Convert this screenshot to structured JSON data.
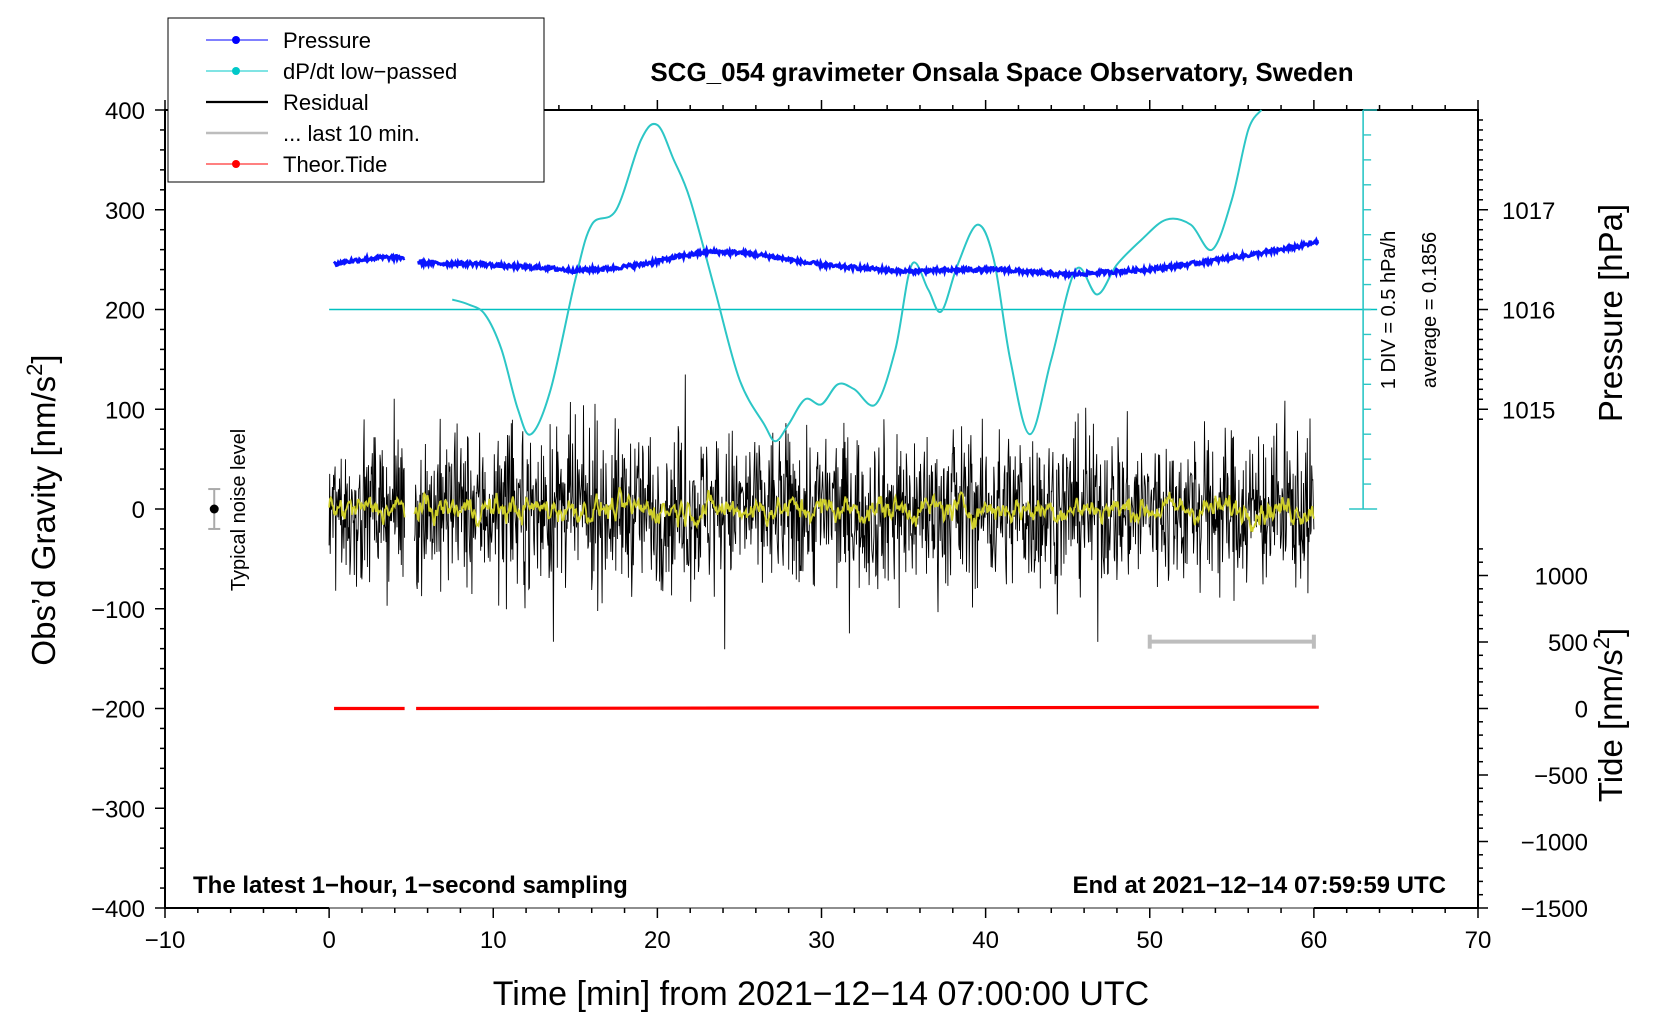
{
  "chart_data": {
    "type": "line",
    "title": "SCG_054 gravimeter Onsala Space Observatory, Sweden",
    "xlabel": "Time [min] from 2021−12−14 07:00:00 UTC",
    "ylabel_left_main": "Obs’d Gravity [nm/s",
    "ylabel_left_sup": "2",
    "ylabel_left_close": "]",
    "ylabel_right_pressure": "Pressure [hPa]",
    "ylabel_right_tide_main": "Tide [nm/s",
    "ylabel_right_tide_sup": "2",
    "ylabel_right_tide_close": "]",
    "xlim": [
      -10,
      70
    ],
    "ylim": [
      -400,
      400
    ],
    "pressure_lim": [
      1013.9,
      1017.95
    ],
    "tide_lim": [
      -1500,
      1500
    ],
    "x_ticks": [
      {
        "v": -10,
        "label": "−10"
      },
      {
        "v": 0,
        "label": "0"
      },
      {
        "v": 10,
        "label": "10"
      },
      {
        "v": 20,
        "label": "20"
      },
      {
        "v": 30,
        "label": "30"
      },
      {
        "v": 40,
        "label": "40"
      },
      {
        "v": 50,
        "label": "50"
      },
      {
        "v": 60,
        "label": "60"
      },
      {
        "v": 70,
        "label": "70"
      }
    ],
    "y_ticks": [
      {
        "v": 400,
        "label": "400"
      },
      {
        "v": 300,
        "label": "300"
      },
      {
        "v": 200,
        "label": "200"
      },
      {
        "v": 100,
        "label": "100"
      },
      {
        "v": 0,
        "label": "0"
      },
      {
        "v": -100,
        "label": "−100"
      },
      {
        "v": -200,
        "label": "−200"
      },
      {
        "v": -300,
        "label": "−300"
      },
      {
        "v": -400,
        "label": "−400"
      }
    ],
    "pressure_ticks": [
      {
        "v": 1017,
        "label": "1017"
      },
      {
        "v": 1016,
        "label": "1016"
      },
      {
        "v": 1015,
        "label": "1015"
      }
    ],
    "tide_ticks": [
      {
        "v": 1000,
        "label": "1000"
      },
      {
        "v": 500,
        "label": "500"
      },
      {
        "v": 0,
        "label": "0"
      },
      {
        "v": -500,
        "label": "−500"
      },
      {
        "v": -1000,
        "label": "−1000"
      },
      {
        "v": -1500,
        "label": "−1500"
      }
    ],
    "legend": [
      {
        "label": "Pressure",
        "color": "#0000ff",
        "marker": true
      },
      {
        "label": "dP/dt low−passed",
        "color": "#00c8c8",
        "marker": true
      },
      {
        "label": "Residual",
        "color": "#000000",
        "marker": false
      },
      {
        "label": "... last 10 min.",
        "color": "#bdbdbd",
        "marker": false
      },
      {
        "label": "Theor.Tide",
        "color": "#ff0000",
        "marker": true
      }
    ],
    "annotations": {
      "bottom_left": "The latest 1−hour, 1−second sampling",
      "bottom_right": "End at 2021−12−14 07:59:59 UTC",
      "noise_label": "Typical noise level",
      "dpdt_div": "1 DIV = 0.5 hPa/h",
      "dpdt_avg": "average = 0.1856"
    },
    "noise_marker": {
      "x": -7,
      "y": 0,
      "err": 20
    },
    "last10_bar": {
      "x0": 50,
      "x1": 60,
      "y": -133
    },
    "dpdt_baseline_y": 200,
    "dpdt_scale": {
      "x": 63,
      "y0": 0,
      "y1": 400,
      "div": 25
    },
    "pressure_x": [
      0.3,
      1,
      2,
      3,
      4,
      4.5,
      5.5,
      7,
      9,
      11,
      13,
      15,
      17,
      19,
      21,
      23,
      25,
      27,
      29,
      31,
      33,
      35,
      37,
      39,
      41,
      43,
      45,
      47,
      49,
      51,
      53,
      55,
      57,
      59,
      60.3
    ],
    "pressure_y": [
      1016.45,
      1016.48,
      1016.5,
      1016.52,
      1016.52,
      1016.52,
      1016.47,
      1016.46,
      1016.46,
      1016.43,
      1016.42,
      1016.39,
      1016.41,
      1016.45,
      1016.52,
      1016.58,
      1016.57,
      1016.53,
      1016.47,
      1016.43,
      1016.41,
      1016.38,
      1016.39,
      1016.4,
      1016.4,
      1016.37,
      1016.35,
      1016.37,
      1016.39,
      1016.42,
      1016.47,
      1016.52,
      1016.57,
      1016.63,
      1016.68
    ],
    "dpdt_x": [
      7.5,
      8.5,
      9.5,
      10.5,
      11.5,
      12.3,
      13.5,
      15,
      16,
      17.5,
      19,
      20,
      21,
      22,
      23.5,
      25,
      26.5,
      27.2,
      28,
      29,
      30,
      31,
      32,
      33.3,
      34.5,
      35.5,
      36.5,
      37.3,
      38.3,
      39.5,
      40.5,
      41.5,
      42.7,
      44,
      45.5,
      46.8,
      48,
      49.5,
      51,
      52.5,
      53.8,
      55,
      56,
      56.8
    ],
    "dpdt_y": [
      210,
      205,
      195,
      160,
      100,
      75,
      120,
      230,
      285,
      300,
      370,
      385,
      350,
      310,
      220,
      130,
      85,
      68,
      85,
      110,
      105,
      125,
      120,
      105,
      160,
      245,
      220,
      198,
      245,
      285,
      250,
      150,
      75,
      150,
      240,
      215,
      245,
      270,
      290,
      285,
      260,
      310,
      380,
      400
    ],
    "tide_value": 0,
    "tide_end_value": 10
  }
}
